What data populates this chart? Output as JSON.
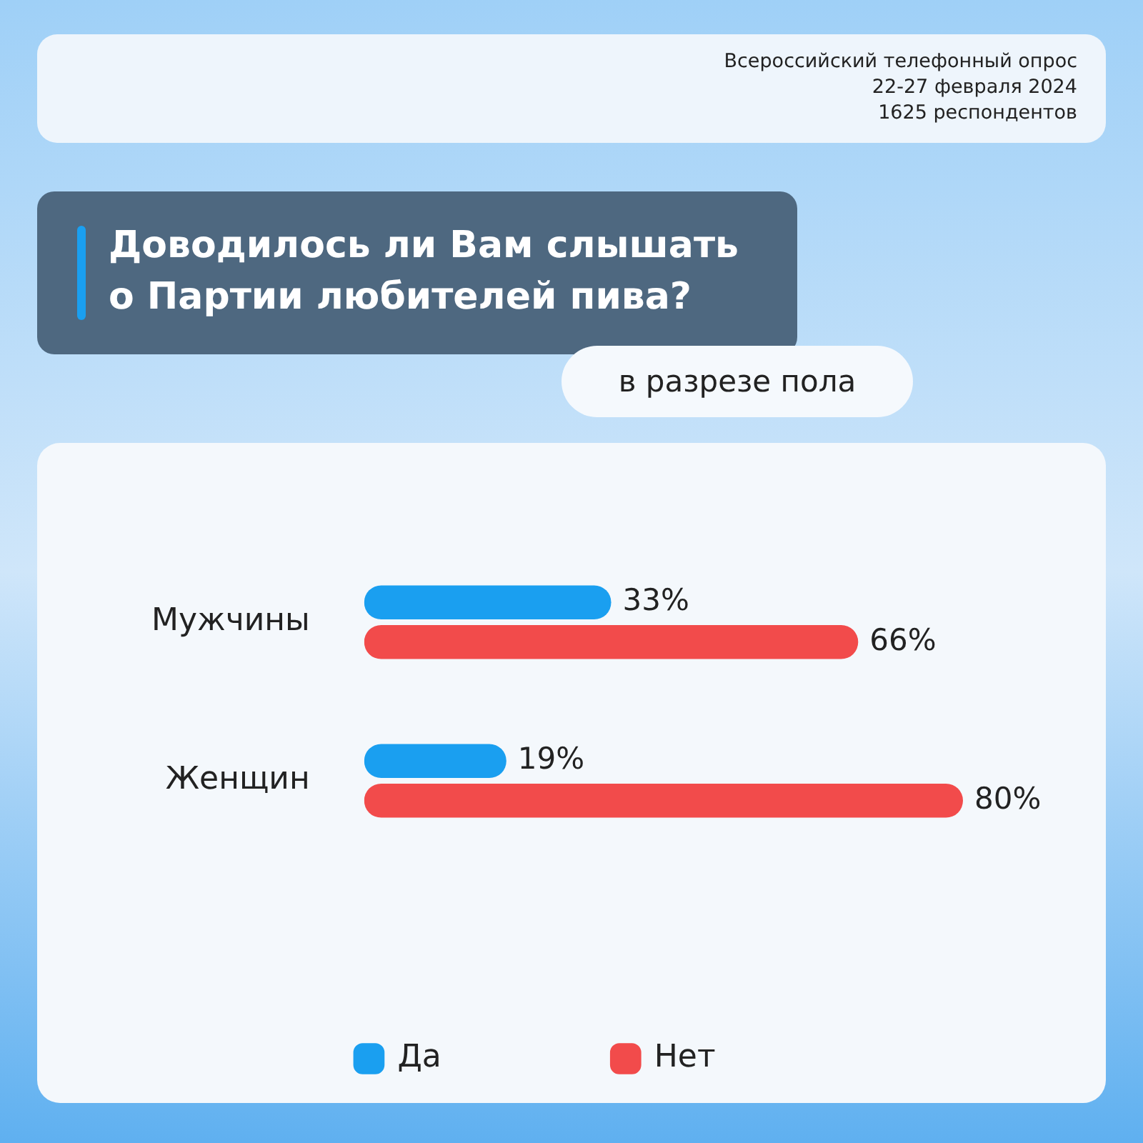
{
  "chart_data": {
    "type": "bar",
    "orientation": "horizontal",
    "title": "Доводилось ли Вам слышать о Партии любителей пива?",
    "subtitle": "в разрезе пола",
    "annotations": [
      "Всероссийский телефонный опрос\n22-27 февраля 2024\n1625 респондентов"
    ],
    "categories": [
      "Мужчины",
      "Женщин"
    ],
    "series": [
      {
        "name": "Да",
        "color": "#1a9ff0",
        "values": [
          33,
          19
        ],
        "value_labels": [
          "33%",
          "19%"
        ]
      },
      {
        "name": "Нет",
        "color": "#f24b4b",
        "values": [
          66,
          80
        ],
        "value_labels": [
          "66%",
          "80%"
        ]
      }
    ],
    "grid": false,
    "legend": "bottom"
  }
}
